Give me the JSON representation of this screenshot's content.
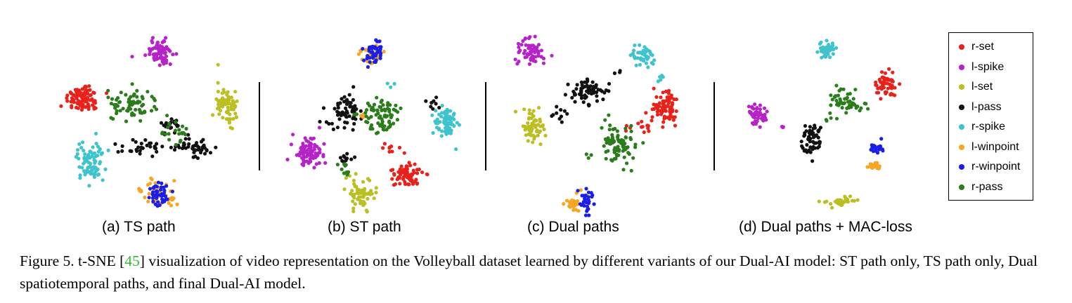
{
  "panels": [
    {
      "id": "a",
      "label": "(a) TS path"
    },
    {
      "id": "b",
      "label": "(b) ST path"
    },
    {
      "id": "c",
      "label": "(c) Dual paths"
    },
    {
      "id": "d",
      "label": "(d) Dual paths + MAC-loss"
    }
  ],
  "legend": [
    {
      "label": "r-set",
      "color": "#e8211b"
    },
    {
      "label": "l-spike",
      "color": "#b623c8"
    },
    {
      "label": "l-set",
      "color": "#bcbf23"
    },
    {
      "label": "l-pass",
      "color": "#111111"
    },
    {
      "label": "r-spike",
      "color": "#3fc3cc"
    },
    {
      "label": "l-winpoint",
      "color": "#f5a623"
    },
    {
      "label": "r-winpoint",
      "color": "#1a1ee6"
    },
    {
      "label": "r-pass",
      "color": "#2a7d1a"
    }
  ],
  "caption": {
    "prefix": "Figure 5. t-SNE [",
    "cite": "45",
    "suffix": "] visualization of video representation on the Volleyball dataset learned by different variants of our Dual-AI model: ST path only, TS path only, Dual spatiotemporal paths, and final Dual-AI model."
  }
}
